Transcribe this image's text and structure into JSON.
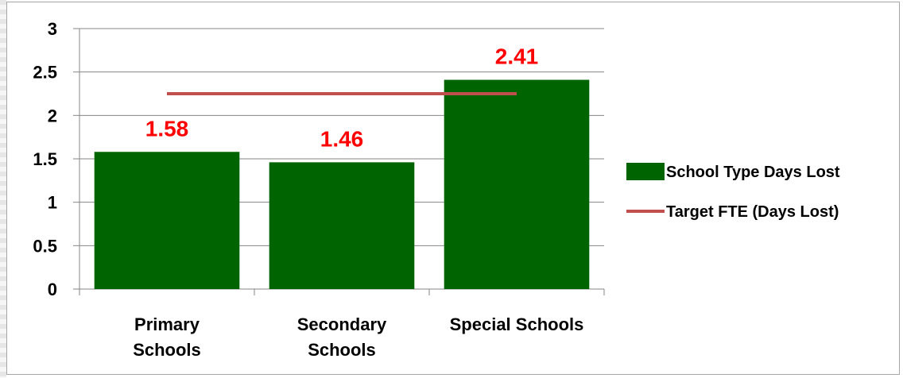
{
  "chart_data": {
    "type": "bar",
    "categories": [
      [
        "Primary",
        "Schools"
      ],
      [
        "Secondary",
        "Schools"
      ],
      [
        "Special Schools"
      ]
    ],
    "series": [
      {
        "name": "School Type Days Lost",
        "type": "bar",
        "values": [
          1.58,
          1.46,
          2.41
        ],
        "color": "#006400"
      },
      {
        "name": "Target FTE (Days Lost)",
        "type": "line",
        "value": 2.25,
        "color": "#c0504d"
      }
    ],
    "data_labels": [
      "1.58",
      "1.46",
      "2.41"
    ],
    "data_label_color": "#ff0000",
    "yticks": [
      "0",
      "0.5",
      "1",
      "1.5",
      "2",
      "2.5",
      "3"
    ],
    "ylim": [
      0,
      3
    ],
    "grid": true,
    "legend_position": "right"
  }
}
